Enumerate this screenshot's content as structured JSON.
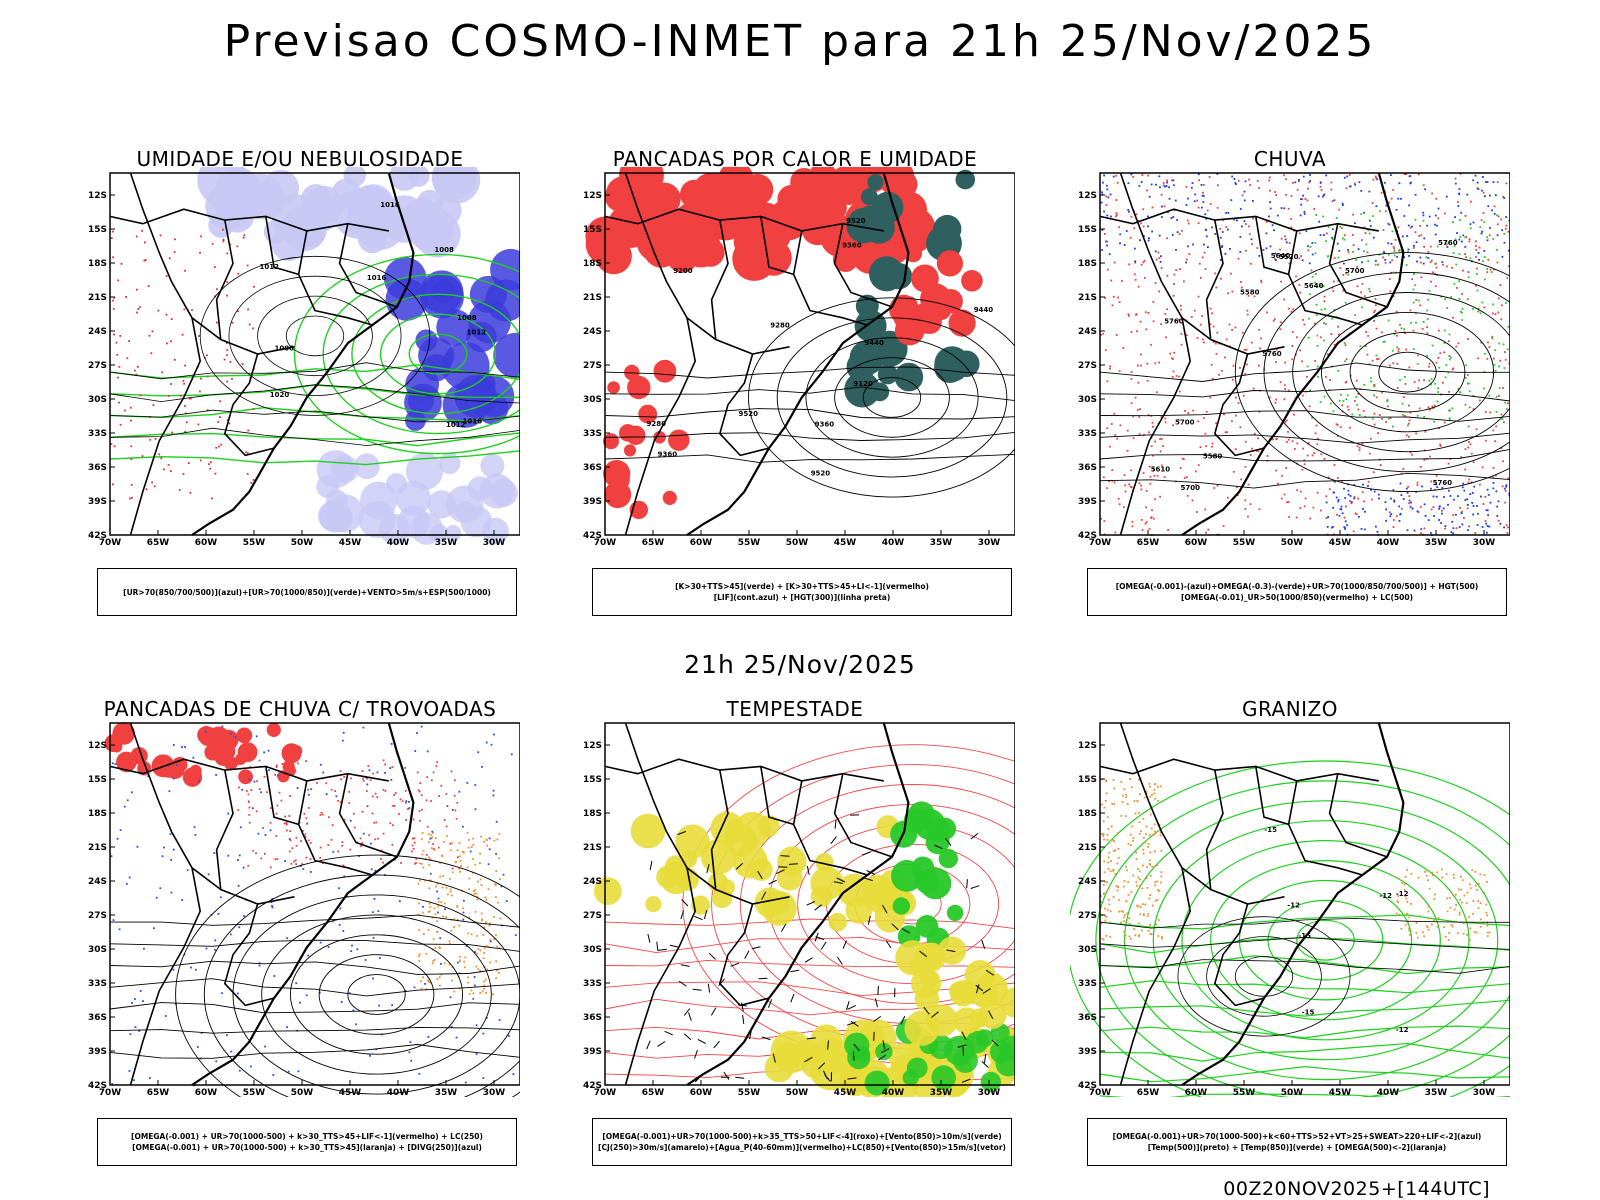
{
  "header": {
    "title": "Previsao COSMO-INMET  para 21h 25/Nov/2025",
    "mid_title": "21h 25/Nov/2025",
    "footer": "00Z20NOV2025+[144UTC]"
  },
  "axes": {
    "lat_labels": [
      "12S",
      "15S",
      "18S",
      "21S",
      "24S",
      "27S",
      "30S",
      "33S",
      "36S",
      "39S",
      "42S"
    ],
    "lon_labels": [
      "70W",
      "65W",
      "60W",
      "55W",
      "50W",
      "45W",
      "40W",
      "35W",
      "30W"
    ]
  },
  "panels": [
    {
      "id": "umidade",
      "title": "UMIDADE E/OU NEBULOSIDADE",
      "legend": [
        "[UR>70(850/700/500)](azul)+[UR>70(1000/850)](verde)+VENTO>5m/s+ESP(500/1000)"
      ],
      "contour_labels": [
        "1012",
        "1008",
        "1016",
        "1012",
        "1008",
        "1016",
        "1020",
        "1016",
        "1012",
        "1008"
      ],
      "colors": {
        "fill_primary": "#c8c8f5",
        "fill_secondary": "#3c3cdc",
        "line_a": "#1fcf1f",
        "line_b": "#e03030"
      }
    },
    {
      "id": "pancadas-calor",
      "title": "PANCADAS POR CALOR E UMIDADE",
      "legend": [
        "[K>30+TTS>45](verde)  +  [K>30+TTS>45+LI<-1](vermelho)",
        "[LIF](cont.azul)  +  [HGT(300)](linha preta)"
      ],
      "contour_labels": [
        "9520",
        "9520",
        "9520",
        "9440",
        "9440",
        "9360",
        "9280",
        "9360",
        "9280",
        "9200",
        "9120",
        "9360"
      ],
      "colors": {
        "fill_primary": "#f04040",
        "fill_secondary": "#2f5f5f"
      }
    },
    {
      "id": "chuva",
      "title": "CHUVA",
      "legend": [
        "[OMEGA(-0.001)-(azul)+OMEGA(-0.3)-(verde)+UR>70(1000/850/700/500)]  +  HGT(500)",
        "[OMEGA(-0.01)_UR>50(1000/850)(vermelho)  +  LC(500)"
      ],
      "contour_labels": [
        "5760",
        "5760",
        "5760",
        "5760",
        "5700",
        "5700",
        "5640",
        "5640",
        "5700",
        "5580",
        "5610",
        "5580",
        "5520"
      ],
      "colors": {
        "fill_primary": "#f04040",
        "fill_secondary": "#1a3cf0",
        "line_a": "#1fcf1f"
      }
    },
    {
      "id": "trovoadas",
      "title": "PANCADAS DE CHUVA C/ TROVOADAS",
      "legend": [
        "[OMEGA(-0.001)  +  UR>70(1000-500)  +  k>30_TTS>45+LIF<-1](vermelho)  +  LC(250)",
        "[OMEGA(-0.001)  +  UR>70(1000-500)  +  k>30_TTS>45](laranja)  +  [DIVG(250)](azul)"
      ],
      "contour_labels": [],
      "colors": {
        "fill_primary": "#f04040",
        "fill_secondary": "#f09030",
        "line_a": "#2050f0"
      }
    },
    {
      "id": "tempestade",
      "title": "TEMPESTADE",
      "legend": [
        "[OMEGA(-0.001)+UR>70(1000-500)+k>35_TTS>50+LIF<-4](roxo)+[Vento(850)>10m/s](verde)",
        "[CJ(250)>30m/s](amarelo)+[Agua_P(40-60mm)](vermelho)+LC(850)+[Vento(850)>15m/s](vetor)"
      ],
      "contour_labels": [],
      "colors": {
        "fill_primary": "#e8dc3a",
        "fill_secondary": "#28c828",
        "line_a": "#f04848"
      }
    },
    {
      "id": "granizo",
      "title": "GRANIZO",
      "legend": [
        "[OMEGA(-0.001)+UR>70(1000-500)+k<60+TTS>52+VT>25+SWEAT>220+LIF<-2](azul)",
        "[Temp(500)](preto)  +  [Temp(850)](verde)  +  [OMEGA(500)<-2](laranja)"
      ],
      "contour_labels": [
        "-12",
        "-12",
        "-12",
        "-15",
        "-15",
        "-15",
        "-12"
      ],
      "colors": {
        "fill_primary": "#f09030",
        "line_a": "#1fcf1f"
      }
    }
  ]
}
